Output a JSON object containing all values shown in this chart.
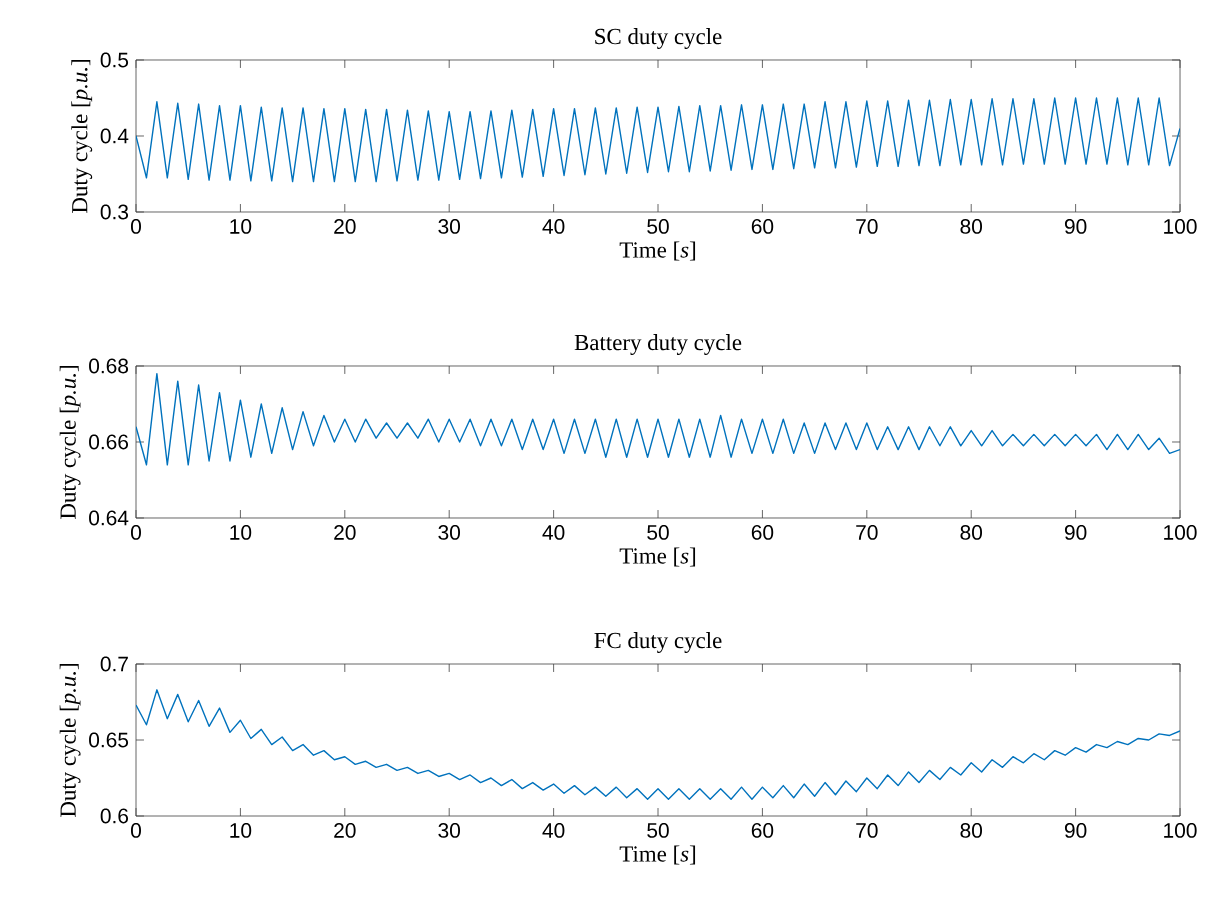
{
  "chart_data": [
    {
      "type": "line",
      "title": "SC duty cycle",
      "xlabel": "Time [*s*]",
      "ylabel": "Duty cycle [*p.u.*]",
      "xlim": [
        0,
        100
      ],
      "xticks": [
        0,
        10,
        20,
        30,
        40,
        50,
        60,
        70,
        80,
        90,
        100
      ],
      "ylim": [
        0.3,
        0.5
      ],
      "yticks": [
        0.3,
        0.4,
        0.5
      ],
      "x": [
        0,
        1,
        2,
        3,
        4,
        5,
        6,
        7,
        8,
        9,
        10,
        11,
        12,
        13,
        14,
        15,
        16,
        17,
        18,
        19,
        20,
        21,
        22,
        23,
        24,
        25,
        26,
        27,
        28,
        29,
        30,
        31,
        32,
        33,
        34,
        35,
        36,
        37,
        38,
        39,
        40,
        41,
        42,
        43,
        44,
        45,
        46,
        47,
        48,
        49,
        50,
        51,
        52,
        53,
        54,
        55,
        56,
        57,
        58,
        59,
        60,
        61,
        62,
        63,
        64,
        65,
        66,
        67,
        68,
        69,
        70,
        71,
        72,
        73,
        74,
        75,
        76,
        77,
        78,
        79,
        80,
        81,
        82,
        83,
        84,
        85,
        86,
        87,
        88,
        89,
        90,
        91,
        92,
        93,
        94,
        95,
        96,
        97,
        98,
        99,
        100
      ],
      "series": [
        {
          "color": "#0072bd",
          "values": [
            0.4,
            0.345,
            0.445,
            0.345,
            0.443,
            0.343,
            0.442,
            0.342,
            0.44,
            0.342,
            0.44,
            0.341,
            0.438,
            0.341,
            0.437,
            0.34,
            0.437,
            0.34,
            0.436,
            0.34,
            0.436,
            0.34,
            0.435,
            0.34,
            0.435,
            0.341,
            0.434,
            0.342,
            0.433,
            0.342,
            0.432,
            0.343,
            0.432,
            0.344,
            0.433,
            0.345,
            0.434,
            0.346,
            0.435,
            0.347,
            0.436,
            0.348,
            0.436,
            0.349,
            0.437,
            0.35,
            0.437,
            0.351,
            0.438,
            0.352,
            0.438,
            0.353,
            0.439,
            0.353,
            0.44,
            0.354,
            0.44,
            0.355,
            0.441,
            0.356,
            0.441,
            0.356,
            0.442,
            0.357,
            0.442,
            0.358,
            0.445,
            0.358,
            0.445,
            0.359,
            0.446,
            0.36,
            0.446,
            0.36,
            0.447,
            0.361,
            0.447,
            0.361,
            0.448,
            0.362,
            0.448,
            0.362,
            0.449,
            0.362,
            0.449,
            0.363,
            0.449,
            0.363,
            0.45,
            0.363,
            0.45,
            0.363,
            0.45,
            0.363,
            0.45,
            0.362,
            0.45,
            0.362,
            0.45,
            0.361,
            0.41
          ]
        }
      ]
    },
    {
      "type": "line",
      "title": "Battery duty cycle",
      "xlabel": "Time [*s*]",
      "ylabel": "Duty cycle [*p.u.*]",
      "xlim": [
        0,
        100
      ],
      "xticks": [
        0,
        10,
        20,
        30,
        40,
        50,
        60,
        70,
        80,
        90,
        100
      ],
      "ylim": [
        0.64,
        0.68
      ],
      "yticks": [
        0.64,
        0.66,
        0.68
      ],
      "x": [
        0,
        1,
        2,
        3,
        4,
        5,
        6,
        7,
        8,
        9,
        10,
        11,
        12,
        13,
        14,
        15,
        16,
        17,
        18,
        19,
        20,
        21,
        22,
        23,
        24,
        25,
        26,
        27,
        28,
        29,
        30,
        31,
        32,
        33,
        34,
        35,
        36,
        37,
        38,
        39,
        40,
        41,
        42,
        43,
        44,
        45,
        46,
        47,
        48,
        49,
        50,
        51,
        52,
        53,
        54,
        55,
        56,
        57,
        58,
        59,
        60,
        61,
        62,
        63,
        64,
        65,
        66,
        67,
        68,
        69,
        70,
        71,
        72,
        73,
        74,
        75,
        76,
        77,
        78,
        79,
        80,
        81,
        82,
        83,
        84,
        85,
        86,
        87,
        88,
        89,
        90,
        91,
        92,
        93,
        94,
        95,
        96,
        97,
        98,
        99,
        100
      ],
      "series": [
        {
          "color": "#0072bd",
          "values": [
            0.664,
            0.654,
            0.678,
            0.654,
            0.676,
            0.654,
            0.675,
            0.655,
            0.673,
            0.655,
            0.671,
            0.656,
            0.67,
            0.657,
            0.669,
            0.658,
            0.668,
            0.659,
            0.667,
            0.66,
            0.666,
            0.66,
            0.666,
            0.661,
            0.665,
            0.661,
            0.665,
            0.661,
            0.666,
            0.66,
            0.666,
            0.66,
            0.666,
            0.659,
            0.666,
            0.659,
            0.666,
            0.658,
            0.666,
            0.658,
            0.666,
            0.657,
            0.666,
            0.657,
            0.666,
            0.656,
            0.666,
            0.656,
            0.666,
            0.656,
            0.666,
            0.656,
            0.666,
            0.656,
            0.666,
            0.656,
            0.667,
            0.656,
            0.666,
            0.657,
            0.666,
            0.657,
            0.666,
            0.657,
            0.665,
            0.657,
            0.665,
            0.658,
            0.665,
            0.658,
            0.665,
            0.658,
            0.664,
            0.658,
            0.664,
            0.658,
            0.664,
            0.659,
            0.664,
            0.659,
            0.663,
            0.659,
            0.663,
            0.659,
            0.662,
            0.659,
            0.662,
            0.659,
            0.662,
            0.659,
            0.662,
            0.659,
            0.662,
            0.658,
            0.662,
            0.658,
            0.662,
            0.658,
            0.661,
            0.657,
            0.658
          ]
        }
      ]
    },
    {
      "type": "line",
      "title": "FC duty cycle",
      "xlabel": "Time [*s*]",
      "ylabel": "Duty cycle [*p.u.*]",
      "xlim": [
        0,
        100
      ],
      "xticks": [
        0,
        10,
        20,
        30,
        40,
        50,
        60,
        70,
        80,
        90,
        100
      ],
      "ylim": [
        0.6,
        0.7
      ],
      "yticks": [
        0.6,
        0.65,
        0.7
      ],
      "x": [
        0,
        1,
        2,
        3,
        4,
        5,
        6,
        7,
        8,
        9,
        10,
        11,
        12,
        13,
        14,
        15,
        16,
        17,
        18,
        19,
        20,
        21,
        22,
        23,
        24,
        25,
        26,
        27,
        28,
        29,
        30,
        31,
        32,
        33,
        34,
        35,
        36,
        37,
        38,
        39,
        40,
        41,
        42,
        43,
        44,
        45,
        46,
        47,
        48,
        49,
        50,
        51,
        52,
        53,
        54,
        55,
        56,
        57,
        58,
        59,
        60,
        61,
        62,
        63,
        64,
        65,
        66,
        67,
        68,
        69,
        70,
        71,
        72,
        73,
        74,
        75,
        76,
        77,
        78,
        79,
        80,
        81,
        82,
        83,
        84,
        85,
        86,
        87,
        88,
        89,
        90,
        91,
        92,
        93,
        94,
        95,
        96,
        97,
        98,
        99,
        100
      ],
      "series": [
        {
          "color": "#0072bd",
          "values": [
            0.673,
            0.66,
            0.683,
            0.664,
            0.68,
            0.662,
            0.676,
            0.659,
            0.671,
            0.655,
            0.663,
            0.651,
            0.657,
            0.647,
            0.652,
            0.643,
            0.647,
            0.64,
            0.643,
            0.637,
            0.639,
            0.634,
            0.636,
            0.632,
            0.634,
            0.63,
            0.632,
            0.628,
            0.63,
            0.626,
            0.628,
            0.624,
            0.627,
            0.622,
            0.625,
            0.62,
            0.624,
            0.618,
            0.622,
            0.617,
            0.621,
            0.615,
            0.62,
            0.614,
            0.619,
            0.613,
            0.619,
            0.612,
            0.618,
            0.611,
            0.618,
            0.611,
            0.618,
            0.611,
            0.618,
            0.611,
            0.618,
            0.611,
            0.619,
            0.611,
            0.619,
            0.612,
            0.62,
            0.612,
            0.621,
            0.613,
            0.622,
            0.614,
            0.623,
            0.616,
            0.625,
            0.618,
            0.627,
            0.62,
            0.629,
            0.622,
            0.63,
            0.624,
            0.632,
            0.627,
            0.635,
            0.629,
            0.637,
            0.632,
            0.639,
            0.635,
            0.641,
            0.637,
            0.643,
            0.64,
            0.645,
            0.642,
            0.647,
            0.645,
            0.649,
            0.647,
            0.651,
            0.65,
            0.654,
            0.653,
            0.656
          ]
        }
      ]
    }
  ]
}
